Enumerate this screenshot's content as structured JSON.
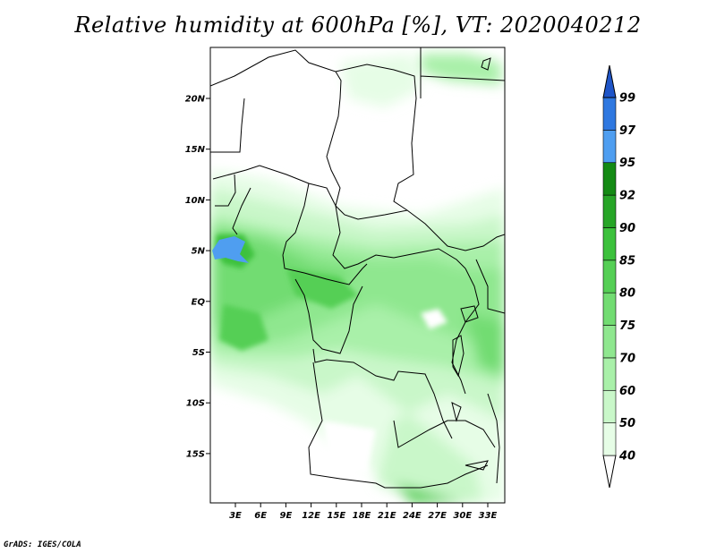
{
  "title": "Relative humidity at 600hPa [%], VT: 2020040212",
  "credit": "GrADS: IGES/COLA",
  "map": {
    "lon_labels": [
      "3E",
      "6E",
      "9E",
      "12E",
      "15E",
      "18E",
      "21E",
      "24E",
      "27E",
      "30E",
      "33E"
    ],
    "lat_labels": [
      "20N",
      "15N",
      "10N",
      "5N",
      "EQ",
      "5S",
      "10S",
      "15S"
    ]
  },
  "colorbar": {
    "levels": [
      "40",
      "50",
      "60",
      "70",
      "75",
      "80",
      "85",
      "90",
      "92",
      "95",
      "97",
      "99"
    ],
    "colors": [
      "#ffffff",
      "#e6fde6",
      "#c9f7c9",
      "#a9f0a9",
      "#8fe78f",
      "#72dc72",
      "#55cf55",
      "#3cc13c",
      "#27a527",
      "#148a14",
      "#4f9ef0",
      "#2f78e0",
      "#1f55c8"
    ]
  },
  "chart_data": {
    "type": "heatmap",
    "title": "Relative humidity at 600hPa [%], VT: 2020040212",
    "variable": "Relative humidity",
    "units": "%",
    "level": "600hPa",
    "valid_time": "2020040212",
    "x_ticks": [
      "3E",
      "6E",
      "9E",
      "12E",
      "15E",
      "18E",
      "21E",
      "24E",
      "27E",
      "30E",
      "33E"
    ],
    "y_ticks": [
      "20N",
      "15N",
      "10N",
      "5N",
      "EQ",
      "5S",
      "10S",
      "15S"
    ],
    "xlim": [
      0,
      35
    ],
    "ylim": [
      -20,
      25
    ],
    "contour_levels": [
      40,
      50,
      60,
      70,
      75,
      80,
      85,
      90,
      92,
      95,
      97,
      99
    ]
  }
}
